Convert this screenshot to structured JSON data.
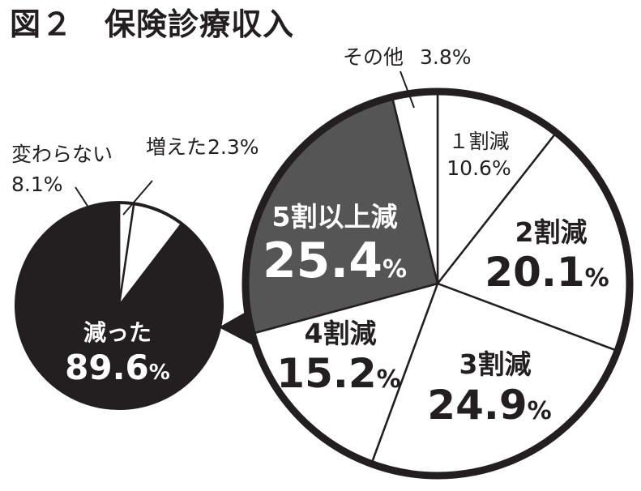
{
  "title": "図２　保険診療収入",
  "chart_data": [
    {
      "type": "pie",
      "slices": [
        {
          "label": "増えた",
          "value": 2.3,
          "value_text": "2.3%"
        },
        {
          "label": "変わらない",
          "value": 8.1,
          "value_text": "8.1%"
        },
        {
          "label": "減った",
          "value": 89.6,
          "value_text": "89.6",
          "unit": "%"
        }
      ]
    },
    {
      "type": "pie",
      "slices": [
        {
          "label": "１割減",
          "value": 10.6,
          "value_text": "10.6%"
        },
        {
          "label": "2割減",
          "value": 20.1,
          "value_text": "20.1",
          "unit": "%"
        },
        {
          "label": "3割減",
          "value": 24.9,
          "value_text": "24.9",
          "unit": "%"
        },
        {
          "label": "4割減",
          "value": 15.2,
          "value_text": "15.2",
          "unit": "%"
        },
        {
          "label": "5割以上減",
          "value": 25.4,
          "value_text": "25.4",
          "unit": "%"
        },
        {
          "label": "その他",
          "value": 3.8,
          "value_text": "3.8%"
        }
      ]
    }
  ],
  "colors": {
    "ink": "#231f20",
    "dark_slice": "#555556",
    "white": "#ffffff"
  }
}
